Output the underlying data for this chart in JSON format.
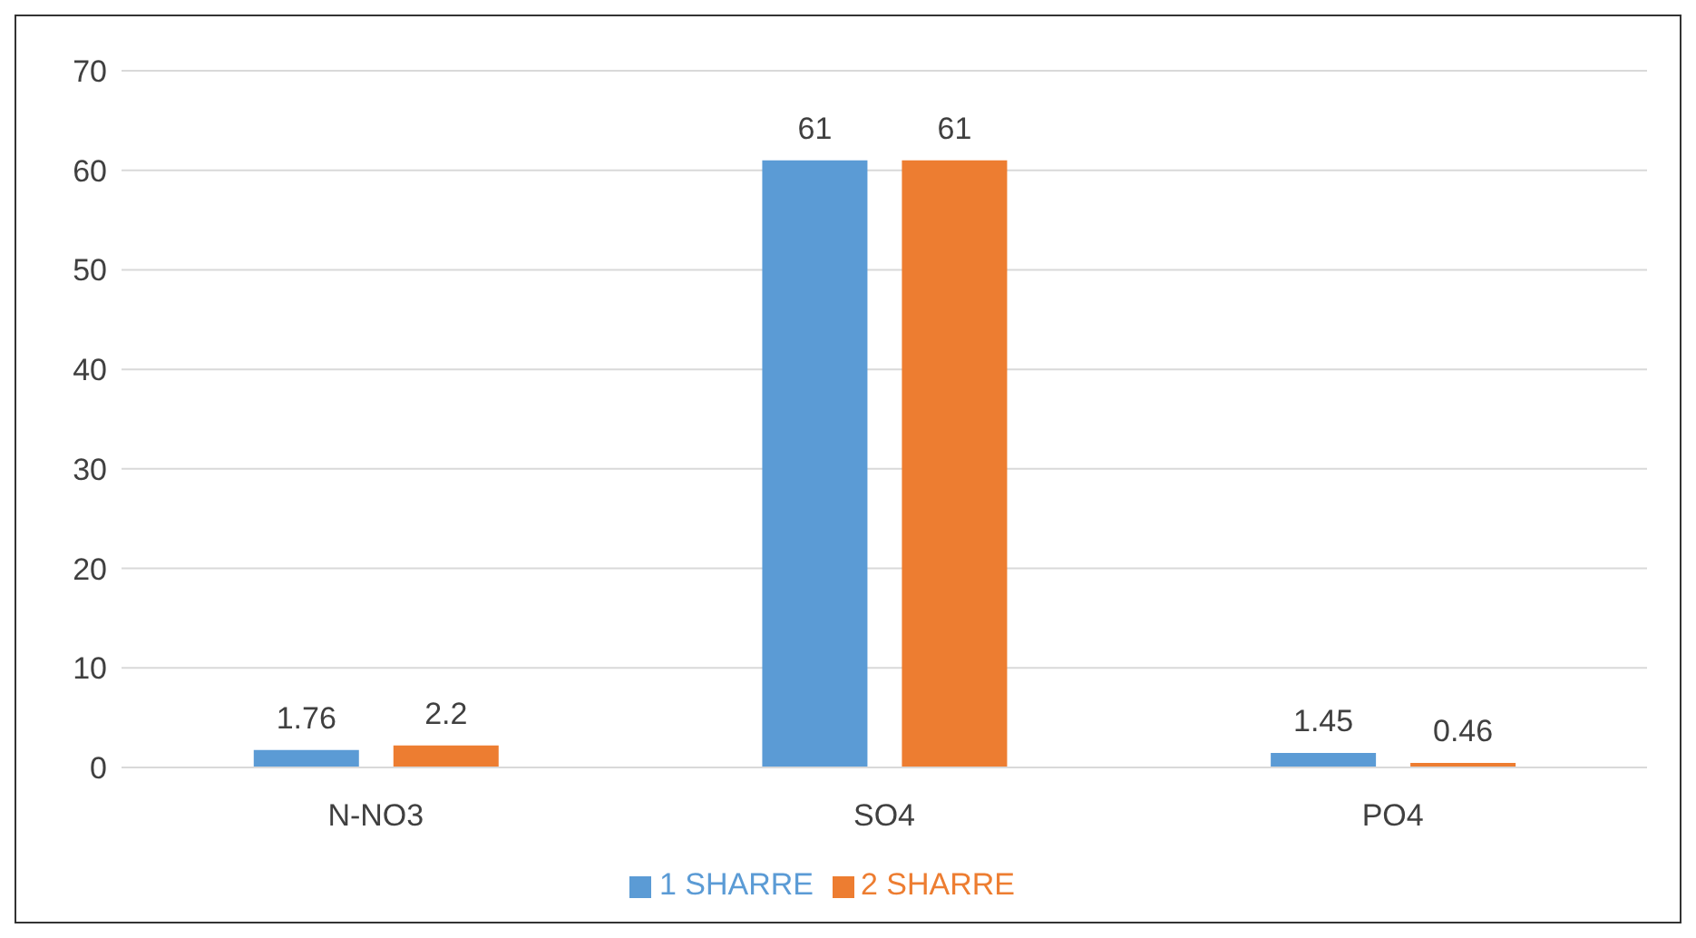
{
  "chart_data": {
    "type": "bar",
    "categories": [
      "N-NO3",
      "SO4",
      "PO4"
    ],
    "series": [
      {
        "name": "1 SHARRE",
        "color": "#5b9bd5",
        "values": [
          1.76,
          61,
          1.45
        ]
      },
      {
        "name": "2 SHARRE",
        "color": "#ed7d31",
        "values": [
          2.2,
          61,
          0.46
        ]
      }
    ],
    "ylim": [
      0,
      70
    ],
    "yticks": [
      0,
      10,
      20,
      30,
      40,
      50,
      60,
      70
    ],
    "grid": "y",
    "legend": "bottom",
    "data_labels": true
  }
}
